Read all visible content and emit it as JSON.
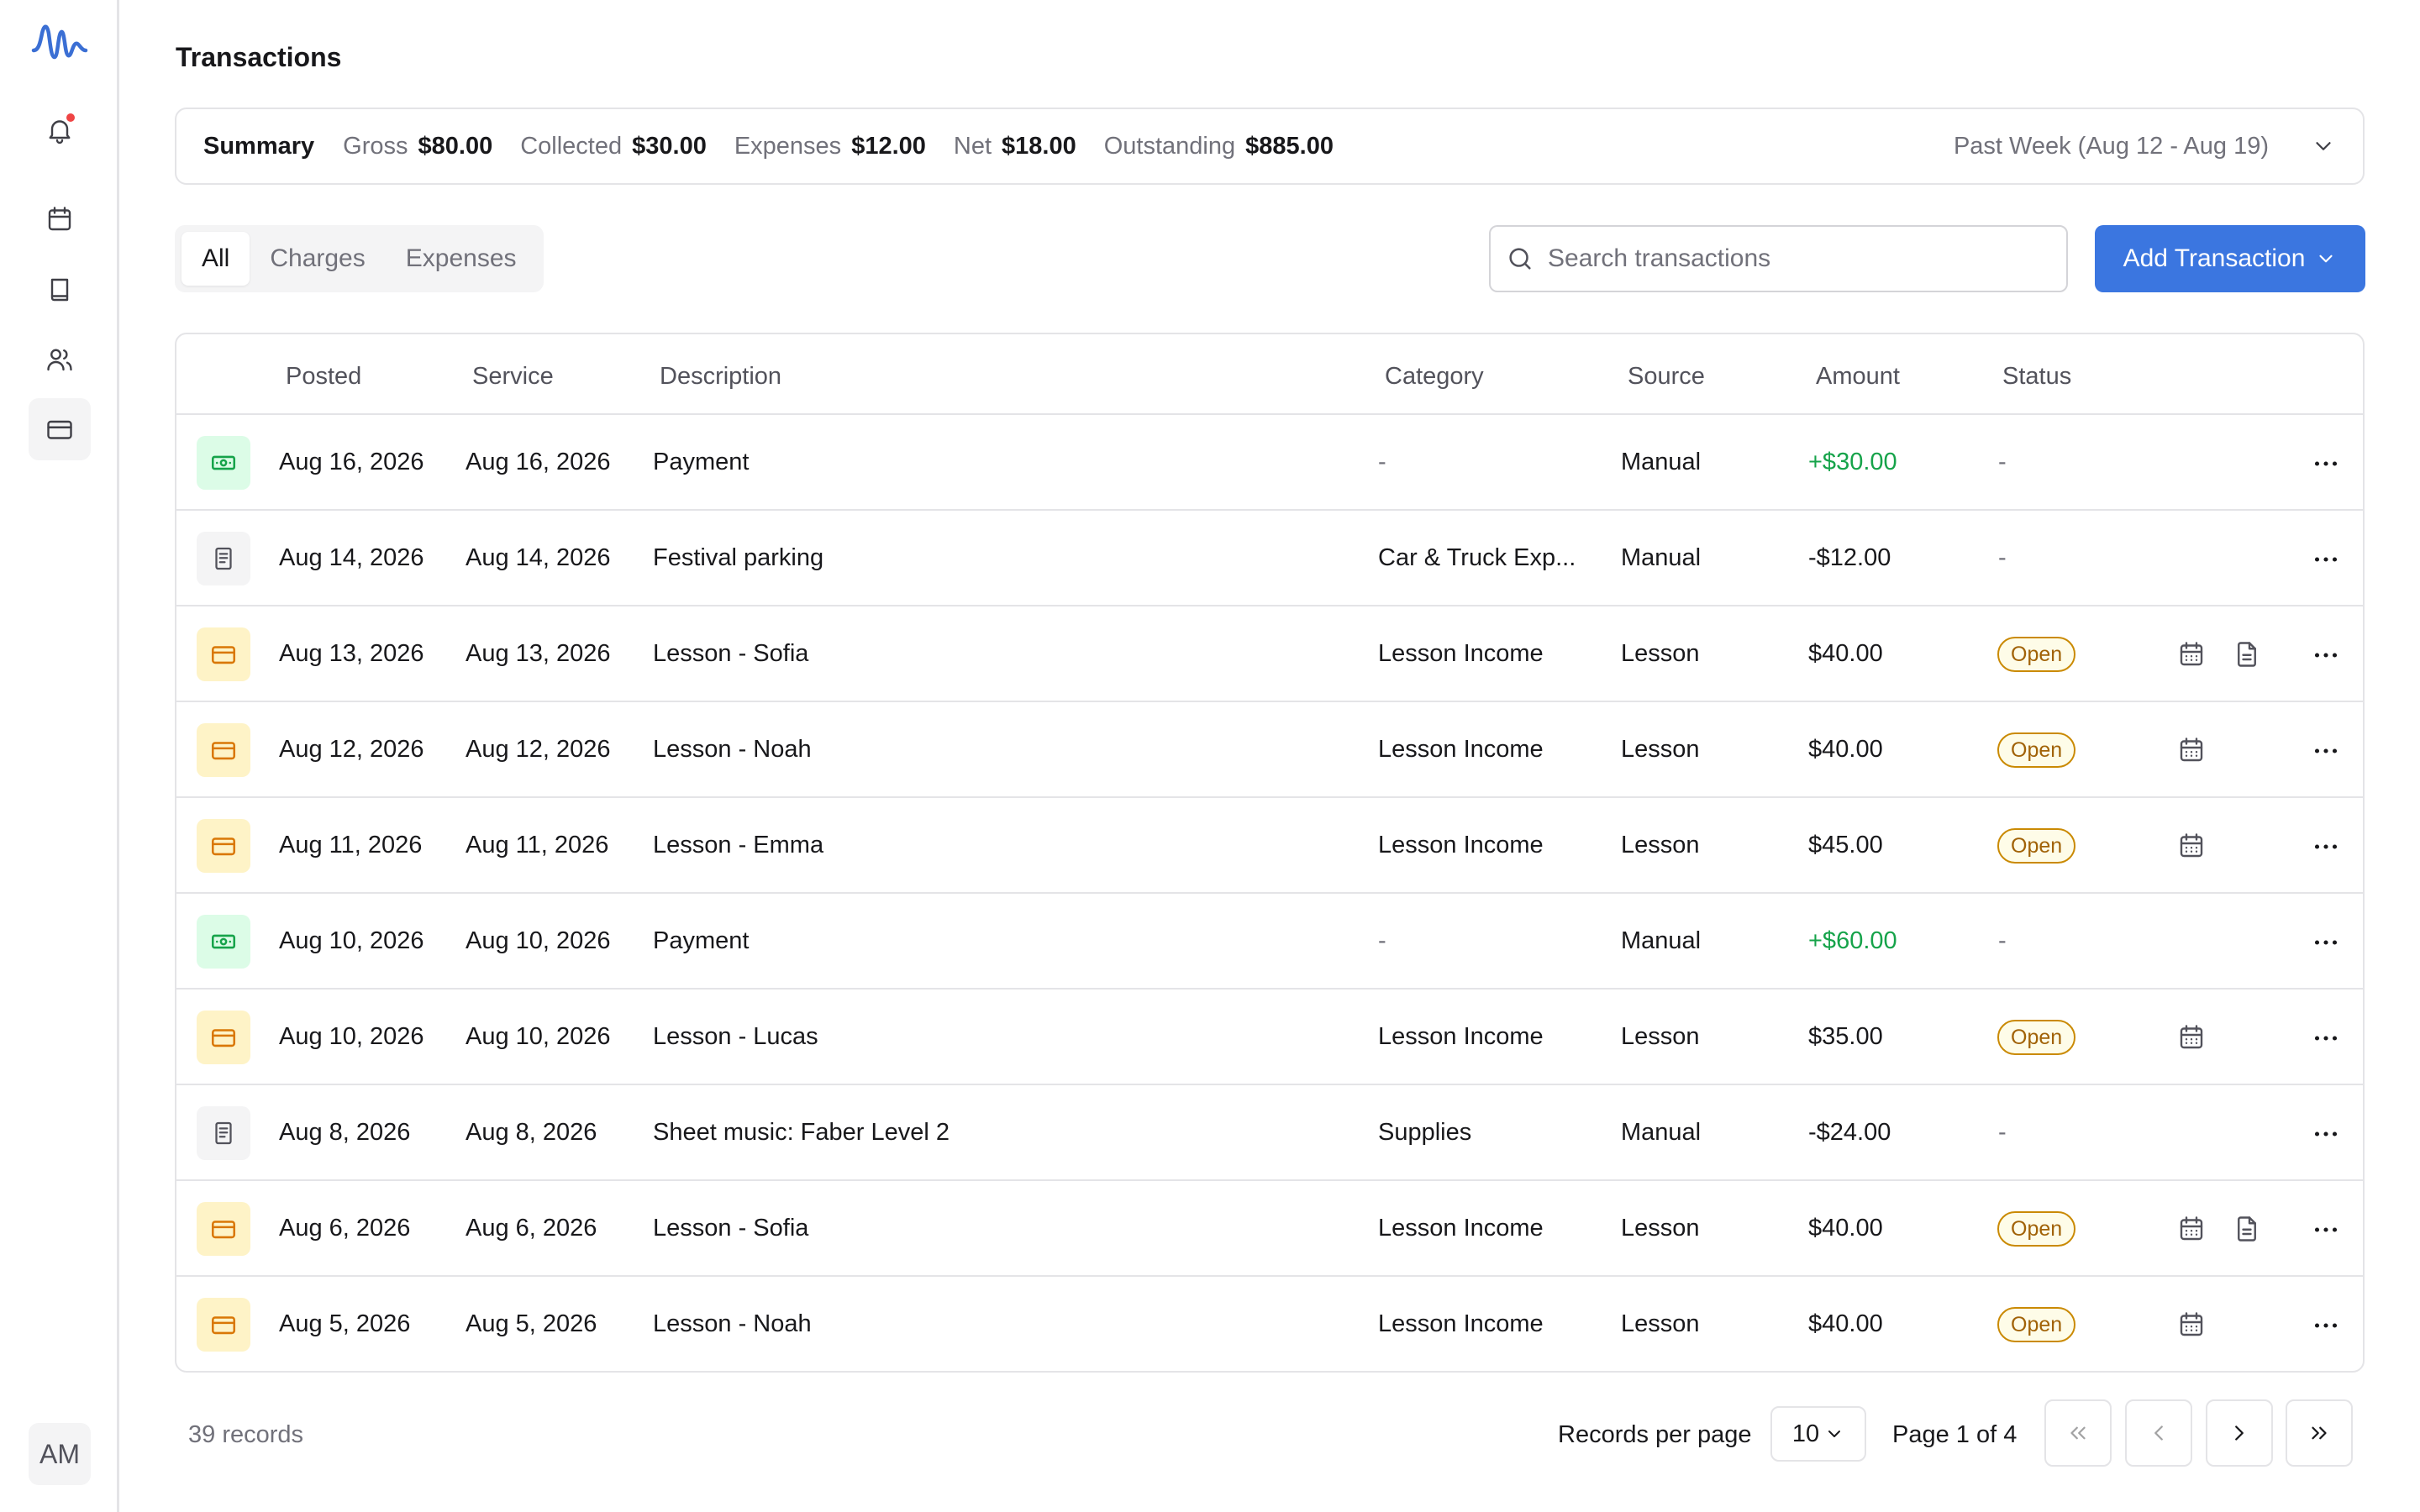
{
  "app": {
    "user_initials": "AM"
  },
  "page": {
    "title": "Transactions"
  },
  "summary": {
    "title": "Summary",
    "metrics": [
      {
        "label": "Gross",
        "value": "$80.00"
      },
      {
        "label": "Collected",
        "value": "$30.00"
      },
      {
        "label": "Expenses",
        "value": "$12.00"
      },
      {
        "label": "Net",
        "value": "$18.00"
      },
      {
        "label": "Outstanding",
        "value": "$885.00"
      }
    ],
    "range": "Past Week (Aug 12 - Aug 19)"
  },
  "tabs": [
    {
      "label": "All",
      "active": true
    },
    {
      "label": "Charges",
      "active": false
    },
    {
      "label": "Expenses",
      "active": false
    }
  ],
  "search": {
    "placeholder": "Search transactions"
  },
  "add_button": {
    "label": "Add Transaction"
  },
  "table": {
    "columns": [
      "Posted",
      "Service",
      "Description",
      "Category",
      "Source",
      "Amount",
      "Status"
    ],
    "rows": [
      {
        "type": "payment",
        "posted": "Aug 16, 2026",
        "service": "Aug 16, 2026",
        "description": "Payment",
        "category": "-",
        "source": "Manual",
        "amount": "+$30.00",
        "status": "-",
        "calendar": false,
        "document": false
      },
      {
        "type": "expense",
        "posted": "Aug 14, 2026",
        "service": "Aug 14, 2026",
        "description": "Festival parking",
        "category": "Car & Truck Exp...",
        "source": "Manual",
        "amount": "-$12.00",
        "status": "-",
        "calendar": false,
        "document": false
      },
      {
        "type": "lesson",
        "posted": "Aug 13, 2026",
        "service": "Aug 13, 2026",
        "description": "Lesson - Sofia",
        "category": "Lesson Income",
        "source": "Lesson",
        "amount": "$40.00",
        "status": "Open",
        "calendar": true,
        "document": true
      },
      {
        "type": "lesson",
        "posted": "Aug 12, 2026",
        "service": "Aug 12, 2026",
        "description": "Lesson - Noah",
        "category": "Lesson Income",
        "source": "Lesson",
        "amount": "$40.00",
        "status": "Open",
        "calendar": true,
        "document": false
      },
      {
        "type": "lesson",
        "posted": "Aug 11, 2026",
        "service": "Aug 11, 2026",
        "description": "Lesson - Emma",
        "category": "Lesson Income",
        "source": "Lesson",
        "amount": "$45.00",
        "status": "Open",
        "calendar": true,
        "document": false
      },
      {
        "type": "payment",
        "posted": "Aug 10, 2026",
        "service": "Aug 10, 2026",
        "description": "Payment",
        "category": "-",
        "source": "Manual",
        "amount": "+$60.00",
        "status": "-",
        "calendar": false,
        "document": false
      },
      {
        "type": "lesson",
        "posted": "Aug 10, 2026",
        "service": "Aug 10, 2026",
        "description": "Lesson - Lucas",
        "category": "Lesson Income",
        "source": "Lesson",
        "amount": "$35.00",
        "status": "Open",
        "calendar": true,
        "document": false
      },
      {
        "type": "expense",
        "posted": "Aug 8, 2026",
        "service": "Aug 8, 2026",
        "description": "Sheet music: Faber Level 2",
        "category": "Supplies",
        "source": "Manual",
        "amount": "-$24.00",
        "status": "-",
        "calendar": false,
        "document": false
      },
      {
        "type": "lesson",
        "posted": "Aug 6, 2026",
        "service": "Aug 6, 2026",
        "description": "Lesson - Sofia",
        "category": "Lesson Income",
        "source": "Lesson",
        "amount": "$40.00",
        "status": "Open",
        "calendar": true,
        "document": true
      },
      {
        "type": "lesson",
        "posted": "Aug 5, 2026",
        "service": "Aug 5, 2026",
        "description": "Lesson - Noah",
        "category": "Lesson Income",
        "source": "Lesson",
        "amount": "$40.00",
        "status": "Open",
        "calendar": true,
        "document": false
      }
    ]
  },
  "footer": {
    "records_count": "39 records",
    "records_per_page_label": "Records per page",
    "records_per_page_value": "10",
    "page_label": "Page 1 of 4"
  },
  "colors": {
    "accent": "#3b76e0",
    "positive": "#16a34a",
    "open_badge_border": "#ca8a04",
    "notification_dot": "#ef4444"
  },
  "icons": {
    "type": {
      "payment": "banknote-icon",
      "expense": "receipt-icon",
      "lesson": "credit-card-icon"
    }
  }
}
